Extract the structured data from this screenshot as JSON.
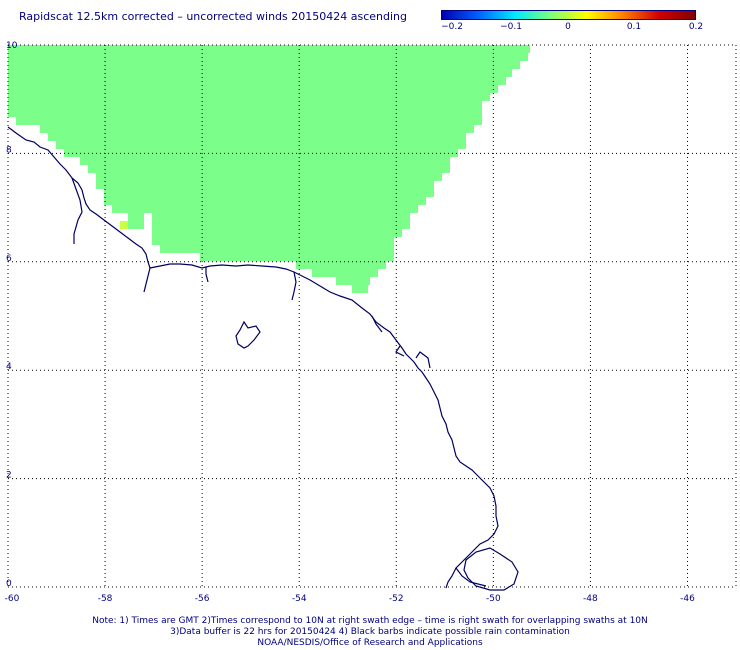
{
  "title": "Rapidscat 12.5km corrected – uncorrected winds 20150424 ascending",
  "colorbar": {
    "ticks": [
      "−0.2",
      "−0.1",
      "0",
      "0.1",
      "0.2"
    ],
    "stops": [
      "#0000b0",
      "#0060ff",
      "#00e8ff",
      "#7cff7c",
      "#ffff00",
      "#ff8000",
      "#d00000",
      "#800000"
    ]
  },
  "map": {
    "lon_range": [
      -60,
      -45
    ],
    "lat_range": [
      0,
      10
    ],
    "x_tick_labels": [
      "-60",
      "-58",
      "-56",
      "-54",
      "-52",
      "-50",
      "-48",
      "-46"
    ],
    "y_tick_labels": [
      "0",
      "2",
      "4",
      "6",
      "8",
      "10"
    ],
    "swath_color": "#7cff8a",
    "coast_color": "#000060",
    "grid_color": "#000000"
  },
  "notes": [
    "Note: 1) Times are GMT 2)Times correspond to 10N at right swath edge – time is right swath for overlapping swaths at 10N",
    "3)Data buffer is 22 hrs for 20150424 4) Black barbs indicate possible rain contamination",
    "NOAA/NESDIS/Office of Research and Applications"
  ]
}
